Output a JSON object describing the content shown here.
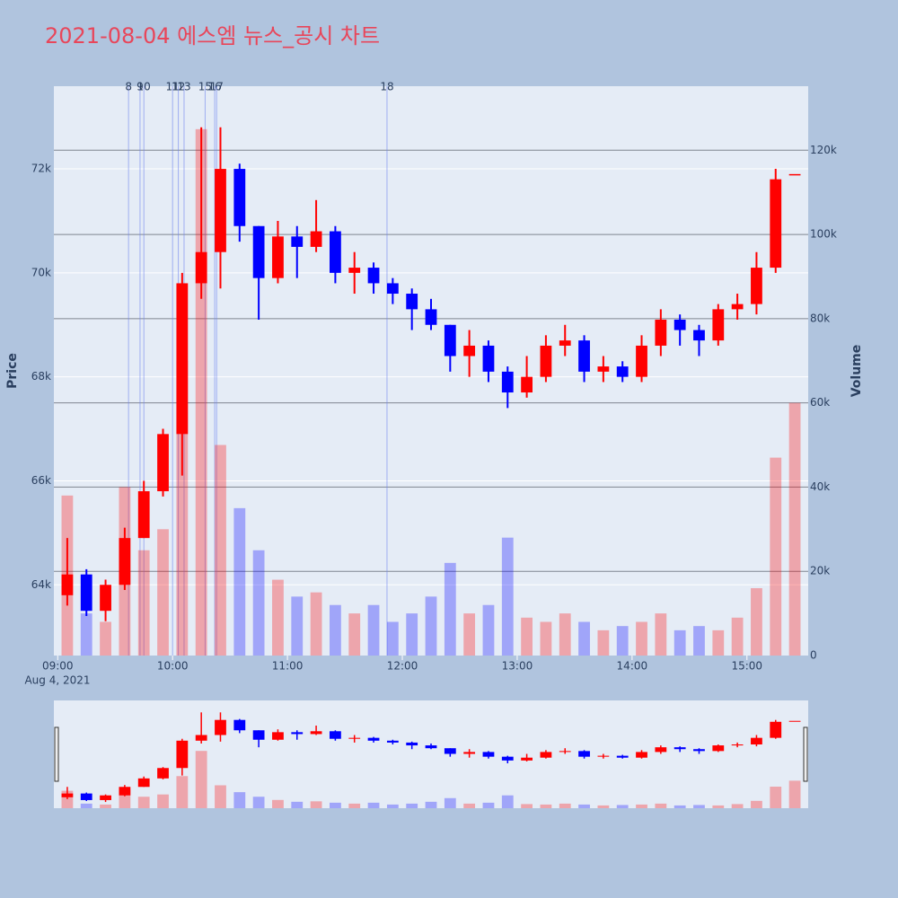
{
  "chart_data": {
    "type": "candlestick",
    "title": "2021-08-04 에스엠 뉴스_공시 차트",
    "y_label": "Price",
    "y2_label": "Volume",
    "x_date_label": "Aug 4, 2021",
    "increasing_color": "#ff0000",
    "decreasing_color": "#0000ff",
    "xlim": [
      "2021-08-04 08:58",
      "2021-08-04 15:32"
    ],
    "xticks": [
      {
        "value": "2021-08-04 09:00",
        "label": "09:00"
      },
      {
        "value": "2021-08-04 10:00",
        "label": "10:00"
      },
      {
        "value": "2021-08-04 11:00",
        "label": "11:00"
      },
      {
        "value": "2021-08-04 12:00",
        "label": "12:00"
      },
      {
        "value": "2021-08-04 13:00",
        "label": "13:00"
      },
      {
        "value": "2021-08-04 14:00",
        "label": "14:00"
      },
      {
        "value": "2021-08-04 15:00",
        "label": "15:00"
      }
    ],
    "ylim": [
      62640,
      73590
    ],
    "yticks": [
      {
        "value": 64000,
        "label": "64k"
      },
      {
        "value": 66000,
        "label": "66k"
      },
      {
        "value": 68000,
        "label": "68k"
      },
      {
        "value": 70000,
        "label": "70k"
      },
      {
        "value": 72000,
        "label": "72k"
      }
    ],
    "y2lim": [
      0,
      135200
    ],
    "y2ticks": [
      0,
      {
        "value": 20000,
        "label": "20k"
      },
      {
        "value": 40000,
        "label": "40k"
      },
      {
        "value": 60000,
        "label": "60k"
      },
      {
        "value": 80000,
        "label": "80k"
      },
      {
        "value": 100000,
        "label": "100k"
      },
      {
        "value": 120000,
        "label": "120k"
      }
    ],
    "x": [
      "2021-08-04 09:00",
      "2021-08-04 09:10",
      "2021-08-04 09:20",
      "2021-08-04 09:30",
      "2021-08-04 09:40",
      "2021-08-04 09:50",
      "2021-08-04 10:00",
      "2021-08-04 10:10",
      "2021-08-04 10:20",
      "2021-08-04 10:30",
      "2021-08-04 10:40",
      "2021-08-04 10:50",
      "2021-08-04 11:00",
      "2021-08-04 11:10",
      "2021-08-04 11:20",
      "2021-08-04 11:30",
      "2021-08-04 11:40",
      "2021-08-04 11:50",
      "2021-08-04 12:00",
      "2021-08-04 12:10",
      "2021-08-04 12:20",
      "2021-08-04 12:30",
      "2021-08-04 12:40",
      "2021-08-04 12:50",
      "2021-08-04 13:00",
      "2021-08-04 13:10",
      "2021-08-04 13:20",
      "2021-08-04 13:30",
      "2021-08-04 13:40",
      "2021-08-04 13:50",
      "2021-08-04 14:00",
      "2021-08-04 14:10",
      "2021-08-04 14:20",
      "2021-08-04 14:30",
      "2021-08-04 14:40",
      "2021-08-04 14:50",
      "2021-08-04 15:00",
      "2021-08-04 15:10",
      "2021-08-04 15:20"
    ],
    "open": [
      63800,
      64200,
      63500,
      64000,
      64900,
      65800,
      66900,
      69800,
      70400,
      72000,
      70900,
      69900,
      70700,
      70500,
      70800,
      70000,
      70100,
      69800,
      69600,
      69300,
      69000,
      68400,
      68600,
      68100,
      67700,
      68000,
      68600,
      68700,
      68100,
      68200,
      68000,
      68600,
      69100,
      68900,
      68700,
      69300,
      69400,
      70100,
      71900
    ],
    "high": [
      64900,
      64300,
      64100,
      65100,
      66000,
      67000,
      70000,
      72800,
      72800,
      72100,
      70900,
      71000,
      70900,
      71400,
      70900,
      70400,
      70200,
      69900,
      69700,
      69500,
      69000,
      68900,
      68700,
      68200,
      68400,
      68800,
      69000,
      68800,
      68400,
      68300,
      68800,
      69300,
      69200,
      69000,
      69400,
      69600,
      70400,
      72000,
      71900
    ],
    "low": [
      63600,
      63400,
      63300,
      63900,
      64900,
      65700,
      66100,
      69500,
      69700,
      70600,
      69100,
      69800,
      69900,
      70400,
      69800,
      69600,
      69600,
      69400,
      68900,
      68900,
      68100,
      68000,
      67900,
      67400,
      67600,
      67900,
      68400,
      67900,
      67900,
      67900,
      67900,
      68400,
      68600,
      68400,
      68600,
      69100,
      69200,
      70000,
      71900
    ],
    "close": [
      64200,
      63500,
      64000,
      64900,
      65800,
      66900,
      69800,
      70400,
      72000,
      70900,
      69900,
      70700,
      70500,
      70800,
      70000,
      70100,
      69800,
      69600,
      69300,
      69000,
      68400,
      68600,
      68100,
      67700,
      68000,
      68600,
      68700,
      68100,
      68200,
      68000,
      68600,
      69100,
      68900,
      68700,
      69300,
      69400,
      70100,
      71800,
      71900
    ],
    "volume": [
      38000,
      10000,
      8000,
      40000,
      25000,
      30000,
      70000,
      125000,
      50000,
      35000,
      25000,
      18000,
      14000,
      15000,
      12000,
      10000,
      12000,
      8000,
      10000,
      14000,
      22000,
      10000,
      12000,
      28000,
      9000,
      8000,
      10000,
      8000,
      6000,
      7000,
      8000,
      10000,
      6000,
      7000,
      6000,
      9000,
      16000,
      47000,
      60000
    ],
    "news": [
      {
        "label": "8",
        "x": "2021-08-04 09:37"
      },
      {
        "label": "9",
        "x": "2021-08-04 09:43"
      },
      {
        "label": "10",
        "x": "2021-08-04 09:45"
      },
      {
        "label": "11",
        "x": "2021-08-04 10:00"
      },
      {
        "label": "12",
        "x": "2021-08-04 10:03"
      },
      {
        "label": "13",
        "x": "2021-08-04 10:06"
      },
      {
        "label": "15",
        "x": "2021-08-04 10:17"
      },
      {
        "label": "16",
        "x": "2021-08-04 10:22"
      },
      {
        "label": "17",
        "x": "2021-08-04 10:23"
      },
      {
        "label": "18",
        "x": "2021-08-04 11:52"
      }
    ]
  }
}
